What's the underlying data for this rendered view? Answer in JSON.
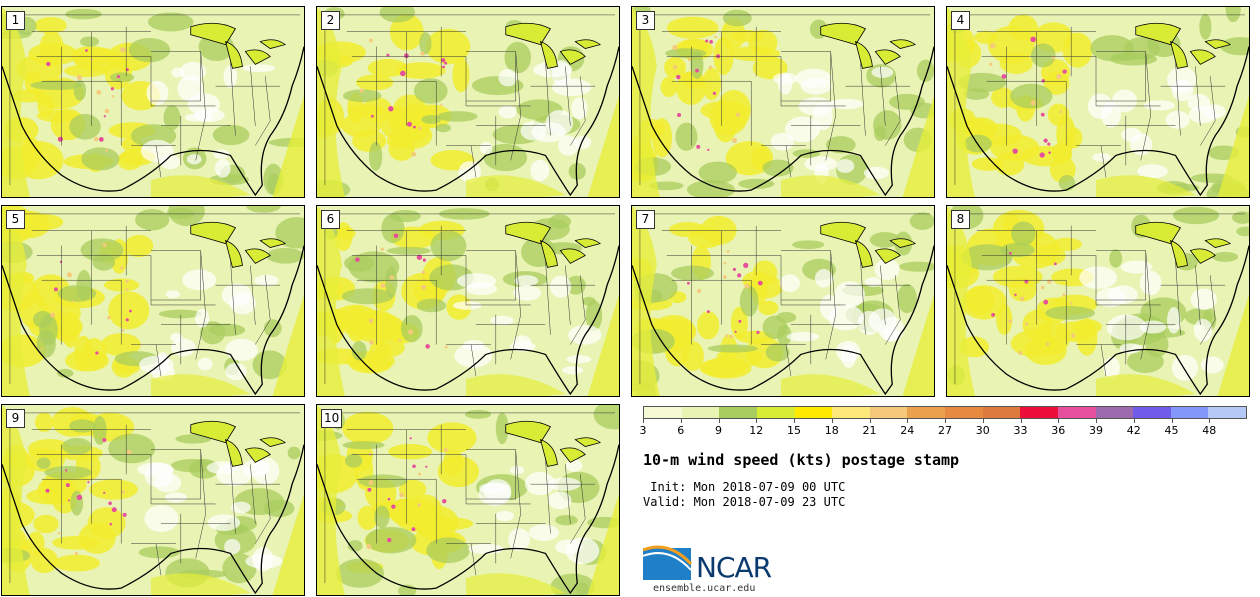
{
  "members": [
    "1",
    "2",
    "3",
    "4",
    "5",
    "6",
    "7",
    "8",
    "9",
    "10"
  ],
  "colorbar": {
    "colors": [
      "#f4f9d4",
      "#e8f3b4",
      "#a9cc5e",
      "#d9ec35",
      "#ffe900",
      "#fde97a",
      "#f5c97a",
      "#eba14e",
      "#e58a3f",
      "#dc7a3e",
      "#ee0e3c",
      "#e64f9c",
      "#9e6aae",
      "#6f5ce9",
      "#8397fb",
      "#b5c9f6"
    ],
    "labels": [
      "3",
      "6",
      "9",
      "12",
      "15",
      "18",
      "21",
      "24",
      "27",
      "30",
      "33",
      "36",
      "39",
      "42",
      "45",
      "48"
    ]
  },
  "title": "10-m wind speed (kts) postage stamp",
  "init_text": " Init: Mon 2018-07-09 00 UTC",
  "valid_text": "Valid: Mon 2018-07-09 23 UTC",
  "logo": {
    "text": "NCAR",
    "website": "ensemble.ucar.edu",
    "colors": [
      "#0a3a6e",
      "#1f7fc7",
      "#f0a020"
    ]
  }
}
